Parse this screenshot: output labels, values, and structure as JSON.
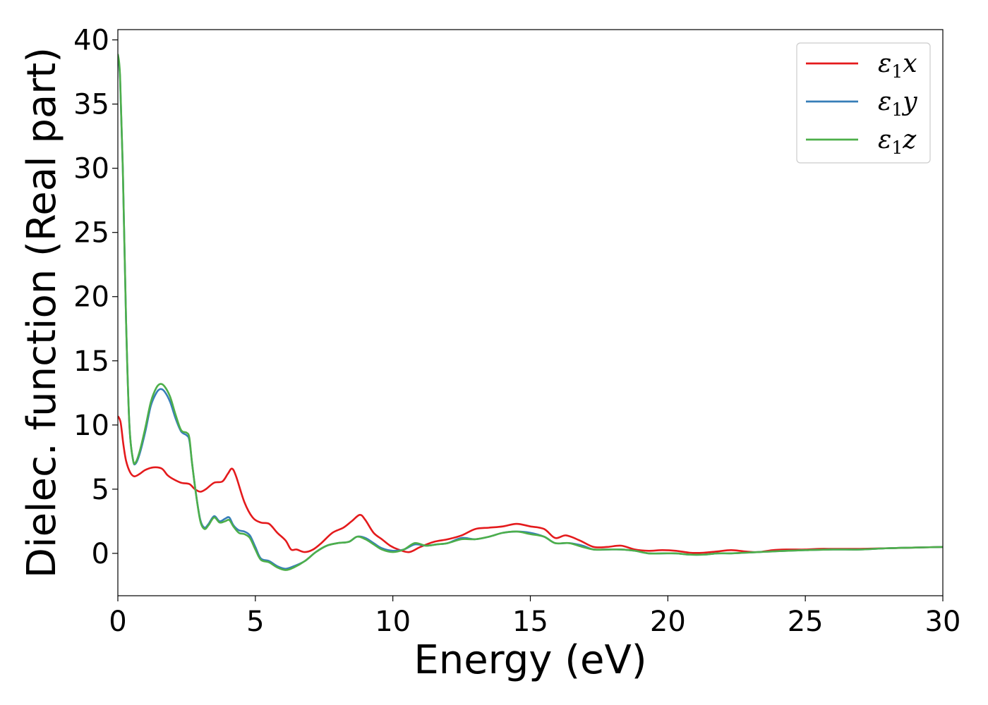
{
  "chart_data": {
    "type": "line",
    "title": "",
    "xlabel": "Energy (eV)",
    "ylabel": "Dielec. function (Real part)",
    "xlim": [
      0,
      30
    ],
    "ylim": [
      -3.3,
      40.8
    ],
    "xticks": [
      0,
      5,
      10,
      15,
      20,
      25,
      30
    ],
    "yticks": [
      0,
      5,
      10,
      15,
      20,
      25,
      30,
      35,
      40
    ],
    "grid": false,
    "legend_position": "top-right",
    "series": [
      {
        "name": "ε1x",
        "label_main": "ε",
        "label_sub": "1",
        "label_var": "x",
        "color": "#e41a1c",
        "points": [
          [
            0,
            10.7
          ],
          [
            0.1,
            10.2
          ],
          [
            0.2,
            8.5
          ],
          [
            0.3,
            7.2
          ],
          [
            0.45,
            6.3
          ],
          [
            0.6,
            6.0
          ],
          [
            0.8,
            6.2
          ],
          [
            1.0,
            6.5
          ],
          [
            1.3,
            6.7
          ],
          [
            1.6,
            6.6
          ],
          [
            1.8,
            6.1
          ],
          [
            2.0,
            5.8
          ],
          [
            2.3,
            5.5
          ],
          [
            2.6,
            5.4
          ],
          [
            2.8,
            5.0
          ],
          [
            3.0,
            4.8
          ],
          [
            3.2,
            5.0
          ],
          [
            3.5,
            5.5
          ],
          [
            3.8,
            5.6
          ],
          [
            4.0,
            6.2
          ],
          [
            4.15,
            6.6
          ],
          [
            4.3,
            6.0
          ],
          [
            4.6,
            4.0
          ],
          [
            4.9,
            2.8
          ],
          [
            5.2,
            2.4
          ],
          [
            5.5,
            2.3
          ],
          [
            5.8,
            1.6
          ],
          [
            6.1,
            1.0
          ],
          [
            6.3,
            0.3
          ],
          [
            6.5,
            0.3
          ],
          [
            6.8,
            0.1
          ],
          [
            7.1,
            0.3
          ],
          [
            7.4,
            0.8
          ],
          [
            7.8,
            1.6
          ],
          [
            8.2,
            2.0
          ],
          [
            8.5,
            2.5
          ],
          [
            8.8,
            3.0
          ],
          [
            9.0,
            2.6
          ],
          [
            9.3,
            1.6
          ],
          [
            9.6,
            1.1
          ],
          [
            9.9,
            0.6
          ],
          [
            10.2,
            0.3
          ],
          [
            10.6,
            0.1
          ],
          [
            11.0,
            0.5
          ],
          [
            11.5,
            0.9
          ],
          [
            12.0,
            1.1
          ],
          [
            12.5,
            1.4
          ],
          [
            13.0,
            1.9
          ],
          [
            13.5,
            2.0
          ],
          [
            14.0,
            2.1
          ],
          [
            14.5,
            2.3
          ],
          [
            15.0,
            2.1
          ],
          [
            15.5,
            1.9
          ],
          [
            15.9,
            1.2
          ],
          [
            16.3,
            1.4
          ],
          [
            16.8,
            1.0
          ],
          [
            17.3,
            0.5
          ],
          [
            17.8,
            0.5
          ],
          [
            18.3,
            0.6
          ],
          [
            18.8,
            0.3
          ],
          [
            19.3,
            0.2
          ],
          [
            19.8,
            0.25
          ],
          [
            20.3,
            0.2
          ],
          [
            20.8,
            0.05
          ],
          [
            21.3,
            0.05
          ],
          [
            21.8,
            0.15
          ],
          [
            22.3,
            0.25
          ],
          [
            22.8,
            0.15
          ],
          [
            23.3,
            0.1
          ],
          [
            23.8,
            0.25
          ],
          [
            24.3,
            0.3
          ],
          [
            25.0,
            0.3
          ],
          [
            25.5,
            0.35
          ],
          [
            26.0,
            0.35
          ],
          [
            26.5,
            0.35
          ],
          [
            27.0,
            0.35
          ],
          [
            28.0,
            0.4
          ],
          [
            29.0,
            0.45
          ],
          [
            30.0,
            0.5
          ]
        ]
      },
      {
        "name": "ε1y",
        "label_main": "ε",
        "label_sub": "1",
        "label_var": "y",
        "color": "#377eb8",
        "points": [
          [
            0,
            38.7
          ],
          [
            0.08,
            37.0
          ],
          [
            0.18,
            30.0
          ],
          [
            0.3,
            18.0
          ],
          [
            0.42,
            10.0
          ],
          [
            0.55,
            7.3
          ],
          [
            0.65,
            7.0
          ],
          [
            0.8,
            7.8
          ],
          [
            1.0,
            9.5
          ],
          [
            1.2,
            11.5
          ],
          [
            1.4,
            12.5
          ],
          [
            1.55,
            12.8
          ],
          [
            1.7,
            12.6
          ],
          [
            1.9,
            11.8
          ],
          [
            2.1,
            10.5
          ],
          [
            2.3,
            9.5
          ],
          [
            2.5,
            9.2
          ],
          [
            2.6,
            8.8
          ],
          [
            2.7,
            7.0
          ],
          [
            2.85,
            4.5
          ],
          [
            3.0,
            2.6
          ],
          [
            3.15,
            2.0
          ],
          [
            3.3,
            2.3
          ],
          [
            3.5,
            2.9
          ],
          [
            3.7,
            2.5
          ],
          [
            3.9,
            2.7
          ],
          [
            4.05,
            2.8
          ],
          [
            4.2,
            2.2
          ],
          [
            4.4,
            1.8
          ],
          [
            4.6,
            1.7
          ],
          [
            4.8,
            1.4
          ],
          [
            5.0,
            0.5
          ],
          [
            5.2,
            -0.4
          ],
          [
            5.5,
            -0.6
          ],
          [
            5.8,
            -1.0
          ],
          [
            6.1,
            -1.2
          ],
          [
            6.4,
            -1.0
          ],
          [
            6.8,
            -0.6
          ],
          [
            7.2,
            0.1
          ],
          [
            7.6,
            0.6
          ],
          [
            8.0,
            0.8
          ],
          [
            8.4,
            0.9
          ],
          [
            8.7,
            1.3
          ],
          [
            9.0,
            1.2
          ],
          [
            9.3,
            0.8
          ],
          [
            9.6,
            0.4
          ],
          [
            10.0,
            0.2
          ],
          [
            10.4,
            0.3
          ],
          [
            10.8,
            0.7
          ],
          [
            11.2,
            0.6
          ],
          [
            11.6,
            0.7
          ],
          [
            12.0,
            0.8
          ],
          [
            12.5,
            1.2
          ],
          [
            13.0,
            1.1
          ],
          [
            13.5,
            1.3
          ],
          [
            14.0,
            1.6
          ],
          [
            14.5,
            1.7
          ],
          [
            15.0,
            1.6
          ],
          [
            15.5,
            1.3
          ],
          [
            15.9,
            0.8
          ],
          [
            16.4,
            0.8
          ],
          [
            16.9,
            0.6
          ],
          [
            17.3,
            0.3
          ],
          [
            17.8,
            0.3
          ],
          [
            18.3,
            0.3
          ],
          [
            18.8,
            0.2
          ],
          [
            19.3,
            0.0
          ],
          [
            19.8,
            0.0
          ],
          [
            20.3,
            0.0
          ],
          [
            20.8,
            -0.1
          ],
          [
            21.3,
            -0.1
          ],
          [
            21.8,
            0.0
          ],
          [
            22.3,
            0.0
          ],
          [
            22.8,
            0.05
          ],
          [
            23.3,
            0.1
          ],
          [
            23.8,
            0.15
          ],
          [
            24.3,
            0.2
          ],
          [
            25.0,
            0.25
          ],
          [
            26.0,
            0.3
          ],
          [
            27.0,
            0.3
          ],
          [
            28.0,
            0.4
          ],
          [
            29.0,
            0.45
          ],
          [
            30.0,
            0.5
          ]
        ]
      },
      {
        "name": "ε1z",
        "label_main": "ε",
        "label_sub": "1",
        "label_var": "z",
        "color": "#4daf4a",
        "points": [
          [
            0,
            38.9
          ],
          [
            0.08,
            37.2
          ],
          [
            0.18,
            30.0
          ],
          [
            0.3,
            18.0
          ],
          [
            0.42,
            10.0
          ],
          [
            0.55,
            7.3
          ],
          [
            0.65,
            7.1
          ],
          [
            0.8,
            8.0
          ],
          [
            1.0,
            9.8
          ],
          [
            1.2,
            11.8
          ],
          [
            1.4,
            12.9
          ],
          [
            1.55,
            13.2
          ],
          [
            1.7,
            13.0
          ],
          [
            1.9,
            12.2
          ],
          [
            2.1,
            10.8
          ],
          [
            2.3,
            9.6
          ],
          [
            2.5,
            9.4
          ],
          [
            2.6,
            9.0
          ],
          [
            2.7,
            7.0
          ],
          [
            2.85,
            4.5
          ],
          [
            3.0,
            2.5
          ],
          [
            3.15,
            1.9
          ],
          [
            3.3,
            2.2
          ],
          [
            3.5,
            2.8
          ],
          [
            3.7,
            2.4
          ],
          [
            3.9,
            2.5
          ],
          [
            4.05,
            2.6
          ],
          [
            4.2,
            2.1
          ],
          [
            4.4,
            1.6
          ],
          [
            4.6,
            1.5
          ],
          [
            4.8,
            1.2
          ],
          [
            5.0,
            0.3
          ],
          [
            5.2,
            -0.5
          ],
          [
            5.5,
            -0.7
          ],
          [
            5.8,
            -1.1
          ],
          [
            6.1,
            -1.3
          ],
          [
            6.4,
            -1.1
          ],
          [
            6.8,
            -0.6
          ],
          [
            7.2,
            0.1
          ],
          [
            7.6,
            0.6
          ],
          [
            8.0,
            0.8
          ],
          [
            8.4,
            0.9
          ],
          [
            8.7,
            1.3
          ],
          [
            9.0,
            1.1
          ],
          [
            9.3,
            0.7
          ],
          [
            9.6,
            0.3
          ],
          [
            10.0,
            0.1
          ],
          [
            10.4,
            0.3
          ],
          [
            10.8,
            0.8
          ],
          [
            11.2,
            0.6
          ],
          [
            11.6,
            0.7
          ],
          [
            12.0,
            0.8
          ],
          [
            12.5,
            1.1
          ],
          [
            13.0,
            1.1
          ],
          [
            13.5,
            1.3
          ],
          [
            14.0,
            1.6
          ],
          [
            14.5,
            1.7
          ],
          [
            15.0,
            1.5
          ],
          [
            15.5,
            1.3
          ],
          [
            15.9,
            0.8
          ],
          [
            16.4,
            0.8
          ],
          [
            16.9,
            0.5
          ],
          [
            17.3,
            0.3
          ],
          [
            17.8,
            0.3
          ],
          [
            18.3,
            0.3
          ],
          [
            18.8,
            0.2
          ],
          [
            19.3,
            0.0
          ],
          [
            19.8,
            0.0
          ],
          [
            20.3,
            0.0
          ],
          [
            20.8,
            -0.1
          ],
          [
            21.3,
            -0.1
          ],
          [
            21.8,
            0.0
          ],
          [
            22.3,
            0.0
          ],
          [
            22.8,
            0.05
          ],
          [
            23.3,
            0.1
          ],
          [
            23.8,
            0.15
          ],
          [
            24.3,
            0.2
          ],
          [
            25.0,
            0.25
          ],
          [
            26.0,
            0.3
          ],
          [
            27.0,
            0.3
          ],
          [
            28.0,
            0.4
          ],
          [
            29.0,
            0.45
          ],
          [
            30.0,
            0.5
          ]
        ]
      }
    ]
  }
}
